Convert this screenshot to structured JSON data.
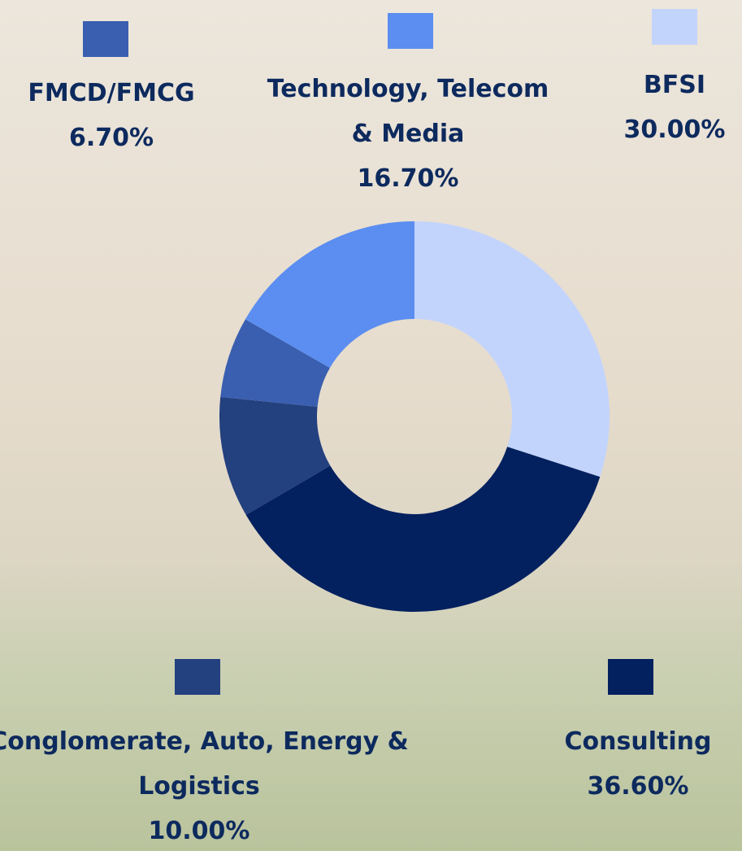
{
  "chart_data": {
    "type": "donut",
    "categories": [
      "BFSI",
      "Consulting",
      "Conglomerate, Auto, Energy & Logistics",
      "FMCD/FMCG",
      "Technology, Telecom & Media"
    ],
    "values": [
      30.0,
      36.6,
      10.0,
      6.7,
      16.7
    ],
    "value_labels": [
      "30.00%",
      "36.60%",
      "10.00%",
      "6.70%",
      "16.70%"
    ],
    "colors": [
      "#c3d4fc",
      "#03205f",
      "#23407f",
      "#3a5fb0",
      "#5b8ef0"
    ]
  }
}
